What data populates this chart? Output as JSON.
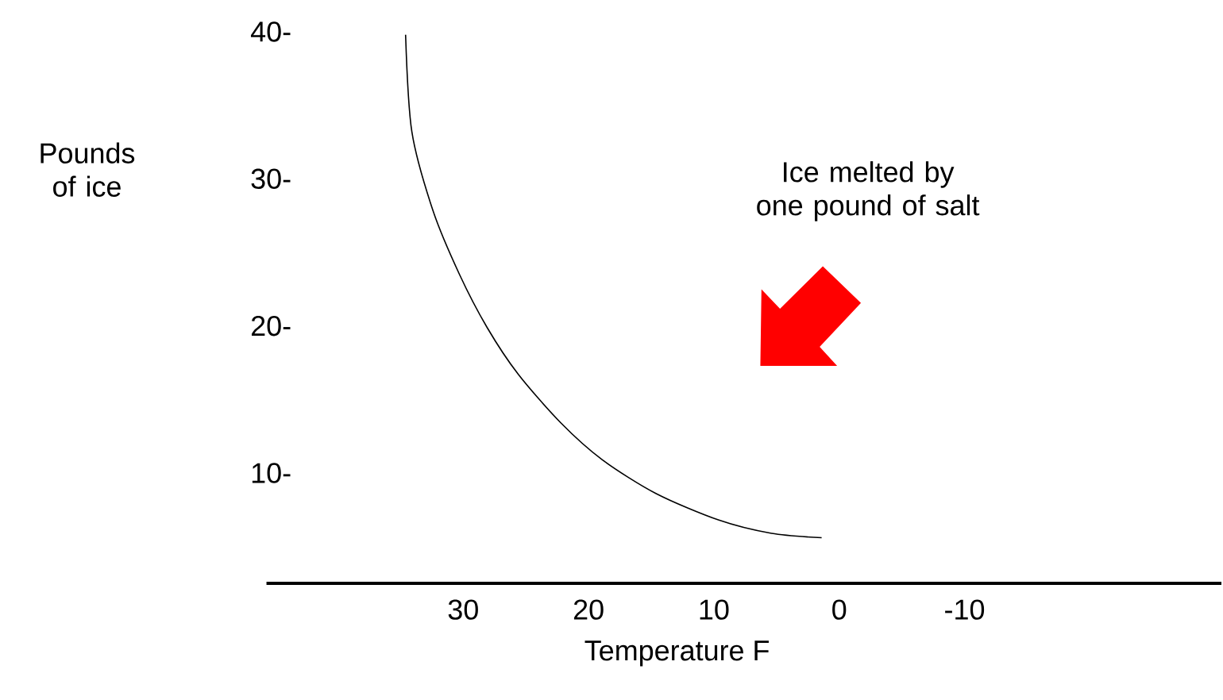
{
  "chart_data": {
    "type": "line",
    "xlabel": "Temperature F",
    "ylabel": "Pounds of  ice",
    "annotations": [
      "Ice melted by one pound of salt"
    ],
    "x": [
      34.6,
      34.1,
      32.4,
      30.3,
      28.1,
      25.6,
      22.2,
      18.9,
      14.6,
      9.6,
      5.4,
      1.4
    ],
    "series": [
      {
        "color": "#000000",
        "values": [
          39.8,
          33.2,
          27.8,
          23.5,
          19.9,
          16.7,
          13.4,
          10.9,
          8.6,
          6.8,
          5.9,
          5.6
        ]
      }
    ],
    "xlim": [
      45.7,
      -30.5
    ],
    "ylim": [
      2.5,
      40
    ],
    "xticks": [
      30,
      20,
      10,
      0,
      -10
    ],
    "yticks": [
      {
        "value": 10,
        "label": "10-"
      },
      {
        "value": 20,
        "label": "20-"
      },
      {
        "value": 30,
        "label": "30-"
      },
      {
        "value": 40,
        "label": "40-"
      }
    ],
    "grid": false,
    "marker": "none",
    "line_style": "solid"
  }
}
